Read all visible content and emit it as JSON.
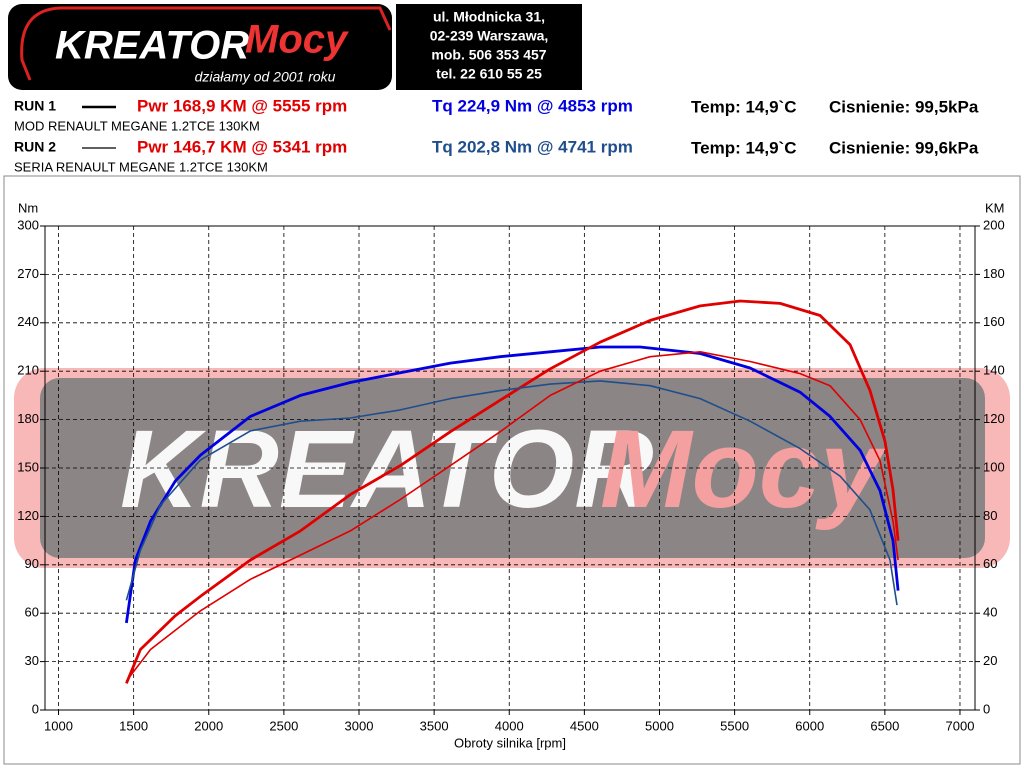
{
  "logo": {
    "brand_a": "KREATOR",
    "brand_b": "Mocy",
    "tagline": "działamy od 2001 roku"
  },
  "address": [
    "ul. Młodnicka 31,",
    "02-239  Warszawa,",
    "mob.  506 353 457",
    "tel.  22 610 55 25"
  ],
  "runs": [
    {
      "label": "RUN 1",
      "power": "Pwr  168,9 KM @ 5555 rpm",
      "torque": "Tq 224,9 Nm @ 4853 rpm",
      "temp": "Temp: 14,9`C",
      "pressure": "Cisnienie: 99,5kPa",
      "desc": "MOD RENAULT MEGANE 1.2TCE 130KM"
    },
    {
      "label": "RUN 2",
      "power": "Pwr  146,7 KM @ 5341 rpm",
      "torque": "Tq 202,8 Nm @ 4741 rpm",
      "temp": "Temp: 14,9`C",
      "pressure": "Cisnienie: 99,6kPa",
      "desc": "SERIA RENAULT MEGANE 1.2TCE 130KM"
    }
  ],
  "chart_data": {
    "type": "line",
    "y_label": "Nm",
    "y2_label": "KM",
    "x_label": "Obroty silnika [rpm]",
    "xlim": [
      910,
      7100
    ],
    "xticks": [
      1000,
      1500,
      2000,
      2500,
      3000,
      3500,
      4000,
      4500,
      5000,
      5500,
      6000,
      6500,
      7000
    ],
    "ylim": [
      0,
      300
    ],
    "yticks": [
      0,
      30,
      60,
      90,
      120,
      150,
      180,
      210,
      240,
      270,
      300
    ],
    "y2lim": [
      0,
      200
    ],
    "y2ticks": [
      0,
      20,
      40,
      60,
      80,
      100,
      120,
      140,
      160,
      180,
      200
    ],
    "grid": true,
    "series": [
      {
        "color": "#0000e0",
        "width": 2.8,
        "x": [
          1452,
          1512,
          1612,
          1778,
          1945,
          2277,
          2610,
          2942,
          3275,
          3608,
          3940,
          4273,
          4605,
          4871,
          5271,
          5603,
          5936,
          6135,
          6335,
          6468,
          6554,
          6588
        ],
        "values": [
          54,
          93,
          117,
          142,
          158,
          182,
          195,
          203,
          209,
          215,
          219,
          222,
          225,
          225,
          221,
          212,
          197,
          182,
          161,
          136,
          105,
          74
        ]
      },
      {
        "color": "#e00000",
        "width": 2.8,
        "axis": "y2",
        "x": [
          1452,
          1545,
          1778,
          1945,
          2277,
          2610,
          2942,
          3275,
          3608,
          3940,
          4273,
          4605,
          4938,
          5271,
          5537,
          5803,
          6069,
          6268,
          6401,
          6501,
          6554,
          6588
        ],
        "values": [
          11,
          25,
          39,
          47,
          62,
          74,
          89,
          101,
          115,
          128,
          141,
          152,
          161,
          167,
          169,
          168,
          163,
          151,
          132,
          111,
          91,
          70
        ]
      },
      {
        "color": "#1f4e8c",
        "width": 1.6,
        "x": [
          1452,
          1545,
          1678,
          1945,
          2277,
          2610,
          2942,
          3275,
          3608,
          3940,
          4273,
          4605,
          4938,
          5271,
          5603,
          5936,
          6202,
          6401,
          6534,
          6581
        ],
        "values": [
          68,
          99,
          127,
          155,
          173,
          179,
          181,
          186,
          193,
          198,
          202,
          204,
          201,
          193,
          179,
          162,
          145,
          124,
          93,
          65
        ]
      },
      {
        "color": "#e00000",
        "width": 1.6,
        "axis": "y2",
        "x": [
          1452,
          1612,
          1945,
          2277,
          2610,
          2942,
          3275,
          3608,
          3940,
          4273,
          4605,
          4938,
          5271,
          5603,
          5936,
          6135,
          6335,
          6468,
          6554,
          6588
        ],
        "values": [
          12,
          25,
          41,
          54,
          64,
          74,
          87,
          101,
          115,
          130,
          140,
          146,
          148,
          144,
          139,
          134,
          120,
          103,
          78,
          62
        ]
      }
    ]
  }
}
